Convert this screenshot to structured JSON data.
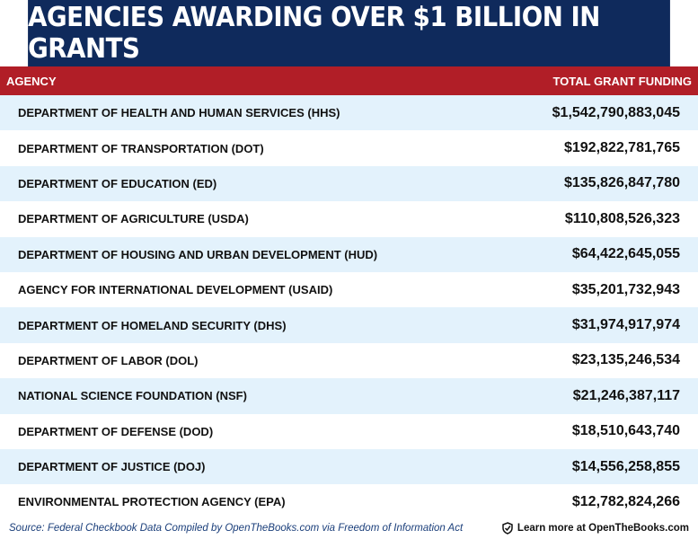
{
  "header": {
    "title": "AGENCIES AWARDING OVER $1 BILLION IN GRANTS"
  },
  "table": {
    "columns": [
      "AGENCY",
      "TOTAL GRANT FUNDING"
    ],
    "rows": [
      [
        "DEPARTMENT OF HEALTH AND HUMAN SERVICES (HHS)",
        "$1,542,790,883,045"
      ],
      [
        "DEPARTMENT OF TRANSPORTATION (DOT)",
        "$192,822,781,765"
      ],
      [
        "DEPARTMENT OF EDUCATION (ED)",
        "$135,826,847,780"
      ],
      [
        "DEPARTMENT OF AGRICULTURE (USDA)",
        "$110,808,526,323"
      ],
      [
        "DEPARTMENT OF HOUSING AND URBAN DEVELOPMENT (HUD)",
        "$64,422,645,055"
      ],
      [
        "AGENCY FOR INTERNATIONAL DEVELOPMENT (USAID)",
        "$35,201,732,943"
      ],
      [
        "DEPARTMENT OF HOMELAND SECURITY (DHS)",
        "$31,974,917,974"
      ],
      [
        "DEPARTMENT OF LABOR (DOL)",
        "$23,135,246,534"
      ],
      [
        "NATIONAL SCIENCE FOUNDATION (NSF)",
        "$21,246,387,117"
      ],
      [
        "DEPARTMENT OF DEFENSE (DOD)",
        "$18,510,643,740"
      ],
      [
        "DEPARTMENT OF JUSTICE (DOJ)",
        "$14,556,258,855"
      ],
      [
        "ENVIRONMENTAL PROTECTION AGENCY (EPA)",
        "$12,782,824,266"
      ]
    ]
  },
  "footer": {
    "source": "Source: Federal Checkbook Data Compiled by OpenTheBooks.com via Freedom of Information Act",
    "link": "Learn more at OpenTheBooks.com"
  }
}
